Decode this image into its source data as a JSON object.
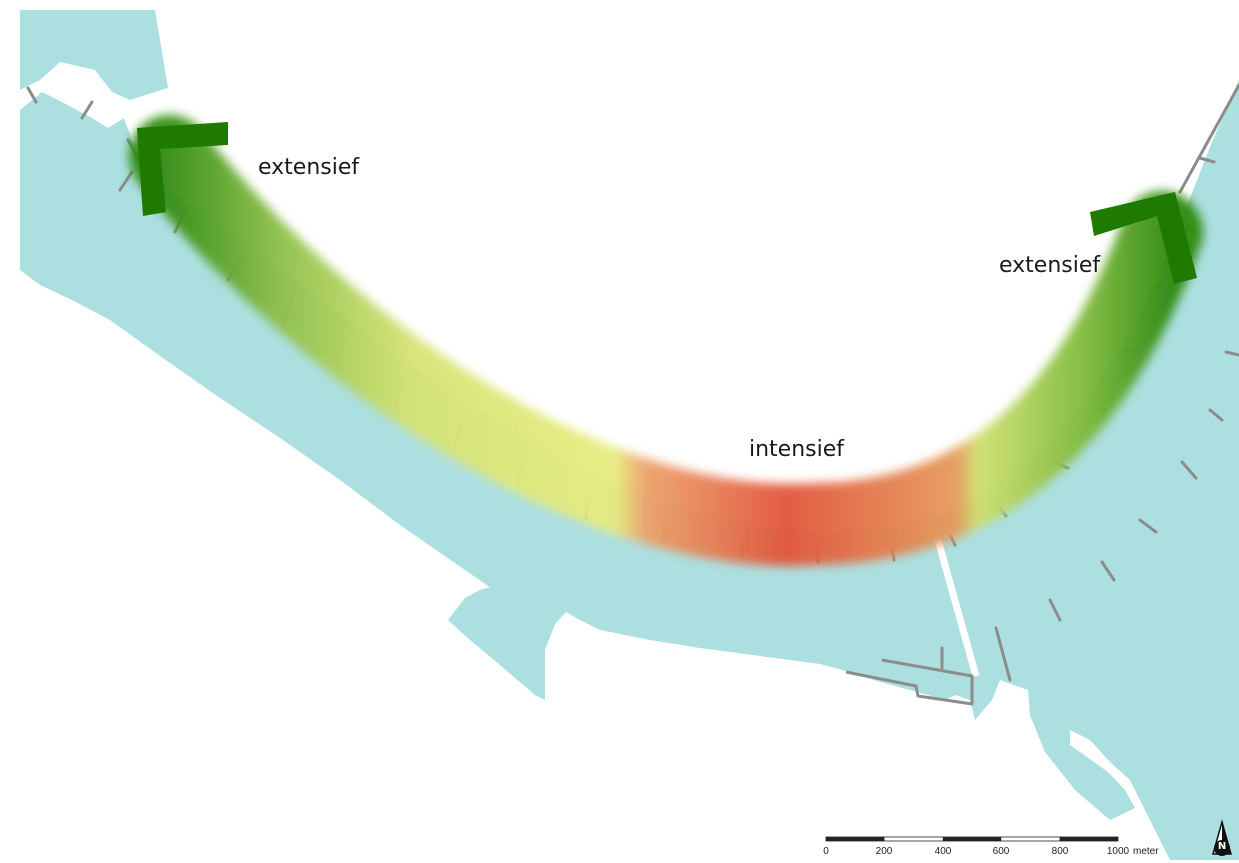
{
  "labels": {
    "left": "extensief",
    "middle": "intensief",
    "right": "extensief"
  },
  "scale_bar": {
    "ticks": [
      "0",
      "200",
      "400",
      "600",
      "800",
      "1000"
    ],
    "unit": "meter"
  },
  "north_arrow": {
    "letter": "N"
  },
  "colors": {
    "water": "#acdfe0",
    "green": "#1e7a00",
    "yellow": "#e6ec7c",
    "red": "#e2543a",
    "groyne": "#8c8c8c"
  }
}
